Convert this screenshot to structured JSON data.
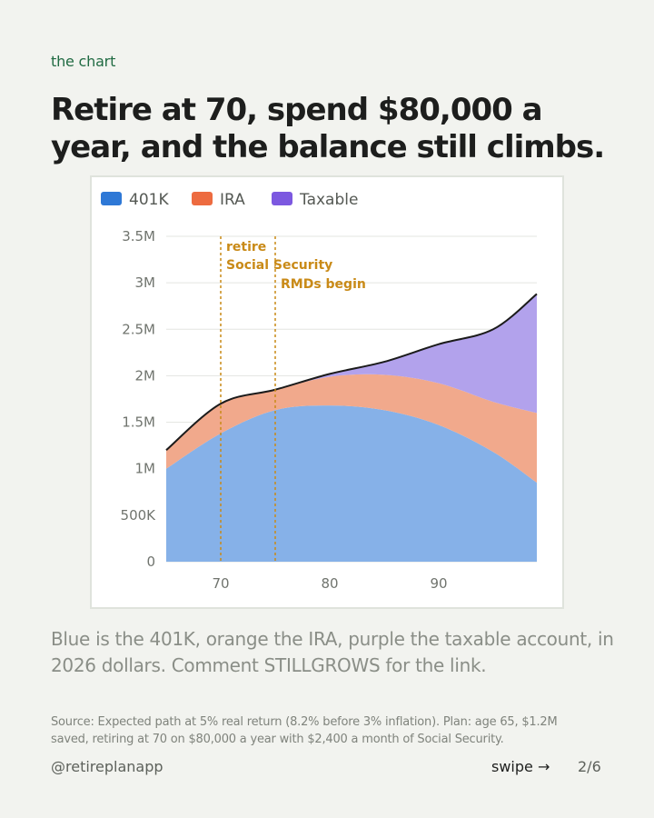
{
  "eyebrow": "the chart",
  "headline": "Retire at 70, spend $80,000 a year, and the balance still climbs.",
  "caption": "Blue is the 401K, orange the IRA, purple the taxable account, in 2026 dollars. Comment STILLGROWS for the link.",
  "source": "Source: Expected path at 5% real return (8.2% before 3% inflation). Plan: age 65, $1.2M saved, retiring at 70 on $80,000 a year with $2,400 a month of Social Security.",
  "footer": {
    "handle": "@retireplanapp",
    "swipe": "swipe →",
    "page": "2/6"
  },
  "colors": {
    "k401": "#86b1e8",
    "ira": "#f1a98c",
    "taxable": "#b2a2ec",
    "k401_legend": "#2e78d6",
    "ira_legend": "#ed6b40",
    "taxable_legend": "#7c58e0",
    "total_line": "#1b1b1b",
    "annotation": "#c98a17"
  },
  "chart_data": {
    "type": "area",
    "stacked": true,
    "xlim": [
      65,
      99
    ],
    "ylim": [
      0,
      3500000
    ],
    "xticks": [
      70,
      80,
      90
    ],
    "yticks": [
      0,
      500000,
      1000000,
      1500000,
      2000000,
      2500000,
      3000000,
      3500000
    ],
    "ytick_labels": [
      "0",
      "500K",
      "1M",
      "1.5M",
      "2M",
      "2.5M",
      "3M",
      "3.5M"
    ],
    "legend_position": "top-left",
    "grid": "horizontal",
    "x": [
      65,
      70,
      75,
      80,
      85,
      90,
      95,
      99
    ],
    "series": [
      {
        "name": "401K",
        "values": [
          1000000,
          1380000,
          1630000,
          1680000,
          1630000,
          1470000,
          1180000,
          850000
        ]
      },
      {
        "name": "IRA",
        "values": [
          200000,
          320000,
          220000,
          310000,
          380000,
          450000,
          540000,
          750000
        ]
      },
      {
        "name": "Taxable",
        "values": [
          0,
          0,
          0,
          30000,
          140000,
          420000,
          780000,
          1280000
        ]
      }
    ],
    "annotations": [
      {
        "x": 70,
        "lines": [
          "retire",
          "Social Security"
        ]
      },
      {
        "x": 75,
        "lines": [
          "RMDs begin"
        ]
      }
    ]
  }
}
